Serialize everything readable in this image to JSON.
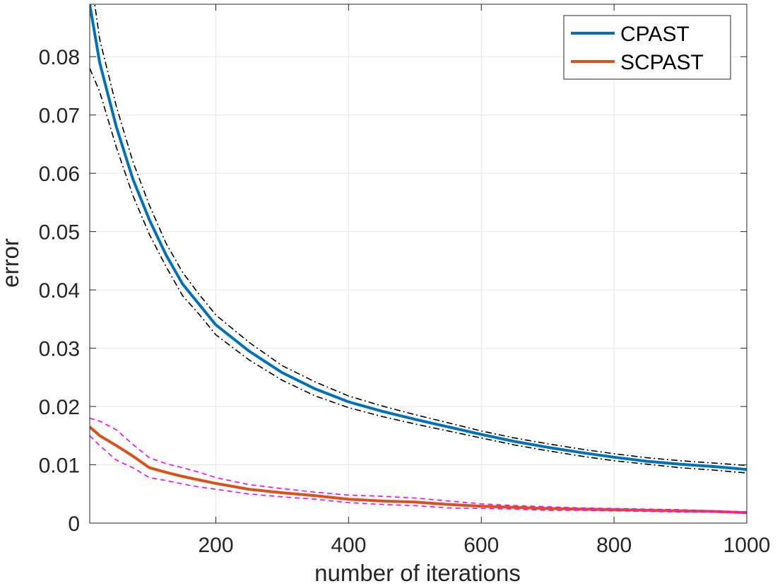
{
  "chart_data": {
    "type": "line",
    "title": "",
    "xlabel": "number of iterations",
    "ylabel": "error",
    "xlim": [
      10,
      1000
    ],
    "ylim": [
      0,
      0.089
    ],
    "xticks": [
      200,
      400,
      600,
      800,
      1000
    ],
    "xtick_labels": [
      "200",
      "400",
      "600",
      "800",
      "1000"
    ],
    "yticks": [
      0,
      0.01,
      0.02,
      0.03,
      0.04,
      0.05,
      0.06,
      0.07,
      0.08
    ],
    "ytick_labels": [
      "0",
      "0.01",
      "0.02",
      "0.03",
      "0.04",
      "0.05",
      "0.06",
      "0.07",
      "0.08"
    ],
    "grid": true,
    "legend_position": "top-right",
    "x": [
      10,
      25,
      50,
      75,
      100,
      125,
      150,
      175,
      200,
      250,
      300,
      350,
      400,
      450,
      500,
      550,
      600,
      650,
      700,
      750,
      800,
      850,
      900,
      950,
      1000
    ],
    "series": [
      {
        "name": "CPAST",
        "color": "#0072BD",
        "style": "solid",
        "values": [
          0.089,
          0.079,
          0.068,
          0.059,
          0.052,
          0.046,
          0.041,
          0.0375,
          0.034,
          0.0295,
          0.0258,
          0.023,
          0.0208,
          0.0192,
          0.0178,
          0.0165,
          0.0152,
          0.014,
          0.013,
          0.0121,
          0.0113,
          0.0106,
          0.0101,
          0.0097,
          0.0092
        ]
      },
      {
        "name": "",
        "color": "#000000",
        "style": "dashdot",
        "values": [
          0.095,
          0.083,
          0.0715,
          0.062,
          0.0545,
          0.048,
          0.043,
          0.0392,
          0.0357,
          0.031,
          0.027,
          0.0242,
          0.0218,
          0.0201,
          0.0186,
          0.0172,
          0.0158,
          0.0146,
          0.0136,
          0.0127,
          0.0119,
          0.0112,
          0.0107,
          0.0103,
          0.0099
        ]
      },
      {
        "name": "",
        "color": "#000000",
        "style": "dashdot",
        "values": [
          0.078,
          0.074,
          0.0645,
          0.0562,
          0.0495,
          0.044,
          0.039,
          0.0358,
          0.0323,
          0.028,
          0.0245,
          0.0218,
          0.0198,
          0.0183,
          0.017,
          0.0158,
          0.0146,
          0.0134,
          0.0124,
          0.0115,
          0.0107,
          0.0101,
          0.0095,
          0.0091,
          0.0086
        ]
      },
      {
        "name": "SCPAST",
        "color": "#D95319",
        "style": "solid",
        "values": [
          0.0165,
          0.015,
          0.0133,
          0.0115,
          0.0095,
          0.0087,
          0.008,
          0.0074,
          0.0068,
          0.0058,
          0.0052,
          0.0047,
          0.0041,
          0.0038,
          0.0036,
          0.0032,
          0.0029,
          0.0027,
          0.0025,
          0.0024,
          0.0023,
          0.0022,
          0.0021,
          0.002,
          0.0018
        ]
      },
      {
        "name": "",
        "color": "#FF00FF",
        "style": "dashed",
        "values": [
          0.018,
          0.0175,
          0.016,
          0.0135,
          0.0112,
          0.0102,
          0.0095,
          0.0087,
          0.0078,
          0.0066,
          0.0059,
          0.0053,
          0.0048,
          0.0046,
          0.0043,
          0.0038,
          0.0033,
          0.003,
          0.0028,
          0.0026,
          0.0025,
          0.0024,
          0.0023,
          0.0021,
          0.0019
        ]
      },
      {
        "name": "",
        "color": "#FF00FF",
        "style": "dashed",
        "values": [
          0.015,
          0.0133,
          0.0108,
          0.0095,
          0.0078,
          0.0073,
          0.0067,
          0.0062,
          0.0058,
          0.005,
          0.0045,
          0.0041,
          0.0035,
          0.0032,
          0.003,
          0.0026,
          0.0025,
          0.0024,
          0.0022,
          0.0022,
          0.0021,
          0.002,
          0.0019,
          0.0019,
          0.0017
        ]
      }
    ]
  }
}
